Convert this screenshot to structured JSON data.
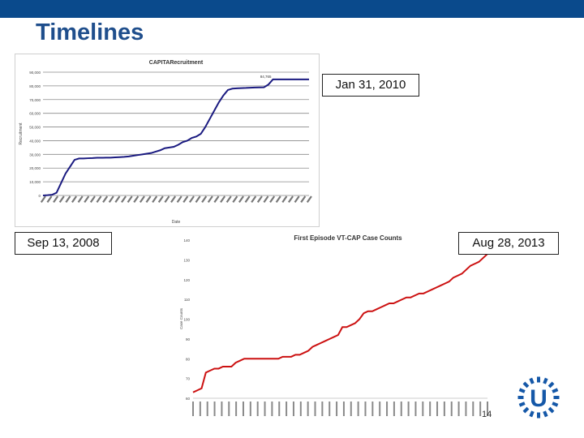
{
  "slide": {
    "title": "Timelines",
    "page_number": "14",
    "callouts": {
      "first": "Jan 31, 2010",
      "second": "Sep 13, 2008",
      "third": "Aug 28, 2013"
    },
    "colors": {
      "header_bar": "#0a4a8c",
      "title": "#1f4e8c",
      "chart1_line": "#1a1a80",
      "chart2_line": "#cc1111",
      "logo": "#1558a8"
    }
  },
  "chart_data": [
    {
      "type": "line",
      "title": "CAPITARecruitment",
      "xlabel": "Date",
      "ylabel": "Recruitment",
      "ylim": [
        0,
        90000
      ],
      "yticks": [
        "0",
        "10,000",
        "20,000",
        "30,000",
        "40,000",
        "50,000",
        "60,000",
        "70,000",
        "80,000",
        "90,000"
      ],
      "annotation": "84,765",
      "series": [
        {
          "name": "Recruitment",
          "x": [
            0,
            1,
            2,
            3,
            4,
            5,
            6,
            7,
            8,
            9,
            10,
            11,
            12,
            13,
            14,
            15,
            16,
            17,
            18,
            19,
            20,
            21,
            22,
            23,
            24,
            25,
            26,
            27,
            28,
            29,
            30,
            31,
            32,
            33,
            34,
            35,
            36,
            37,
            38,
            39,
            40,
            41,
            42,
            43,
            44,
            45,
            46,
            47,
            48,
            49,
            50,
            51,
            52,
            53,
            54,
            55,
            56,
            57,
            58,
            59
          ],
          "values": [
            0,
            200,
            500,
            2000,
            9000,
            16000,
            21000,
            26000,
            27000,
            27000,
            27200,
            27300,
            27500,
            27500,
            27600,
            27600,
            27800,
            28000,
            28200,
            28500,
            29000,
            29500,
            30000,
            30500,
            31000,
            32000,
            33000,
            34500,
            35000,
            35500,
            37000,
            39000,
            40000,
            42000,
            43000,
            45000,
            50000,
            56000,
            62000,
            68000,
            73000,
            77000,
            78000,
            78200,
            78400,
            78500,
            78700,
            78800,
            78900,
            79000,
            81000,
            84765,
            84765,
            84765,
            84765,
            84765,
            84765,
            84765,
            84765,
            84765
          ]
        }
      ]
    },
    {
      "type": "line",
      "title": "First Episode VT-CAP Case Counts",
      "xlabel": "",
      "ylabel": "Case Counts",
      "ylim": [
        60,
        140
      ],
      "yticks": [
        "60",
        "70",
        "80",
        "90",
        "100",
        "110",
        "120",
        "130",
        "140"
      ],
      "series": [
        {
          "name": "Case Counts",
          "values": [
            63,
            64,
            65,
            73,
            74,
            75,
            75,
            76,
            76,
            76,
            78,
            79,
            80,
            80,
            80,
            80,
            80,
            80,
            80,
            80,
            80,
            81,
            81,
            81,
            82,
            82,
            83,
            84,
            86,
            87,
            88,
            89,
            90,
            91,
            92,
            96,
            96,
            97,
            98,
            100,
            103,
            104,
            104,
            105,
            106,
            107,
            108,
            108,
            109,
            110,
            111,
            111,
            112,
            113,
            113,
            114,
            115,
            116,
            117,
            118,
            119,
            121,
            122,
            123,
            125,
            127,
            128,
            129,
            131,
            133
          ]
        }
      ]
    }
  ]
}
